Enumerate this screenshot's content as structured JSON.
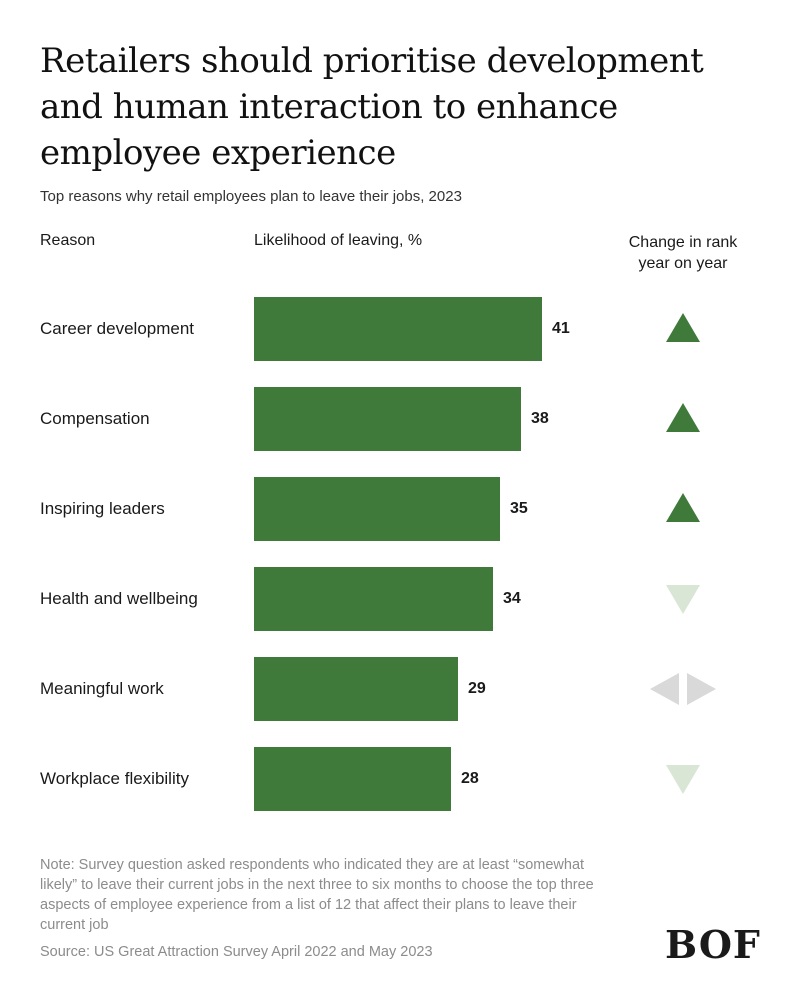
{
  "title": "Retailers should prioritise development and human interaction to enhance employee experience",
  "subtitle": "Top reasons why retail employees plan to leave their jobs, 2023",
  "headers": {
    "reason": "Reason",
    "likelihood": "Likelihood of leaving, %",
    "change_line1": "Change in rank",
    "change_line2": "year on year"
  },
  "chart_data": {
    "type": "bar",
    "orientation": "horizontal",
    "title": "Retailers should prioritise development and human interaction to enhance employee experience",
    "subtitle": "Top reasons why retail employees plan to leave their jobs, 2023",
    "xlabel": "Likelihood of leaving, %",
    "ylabel": "Reason",
    "categories": [
      "Career development",
      "Compensation",
      "Inspiring leaders",
      "Health and wellbeing",
      "Meaningful work",
      "Workplace flexibility"
    ],
    "values": [
      41,
      38,
      35,
      34,
      29,
      28
    ],
    "rank_change": [
      "up",
      "up",
      "up",
      "down",
      "unchanged",
      "down"
    ],
    "xlim": [
      0,
      41
    ]
  },
  "colors": {
    "bar": "#3f7a3b",
    "up": "#3f7a3b",
    "down": "#d9e6d5",
    "unchanged": "#d9d9d9"
  },
  "note": "Note: Survey question asked respondents who indicated they are at least “somewhat likely” to leave their current jobs in the next three to six months to choose the top three aspects of employee experience from a list of 12 that affect their plans to leave their current job",
  "source": "Source: US Great Attraction Survey April 2022 and May 2023",
  "logo": "BOF"
}
